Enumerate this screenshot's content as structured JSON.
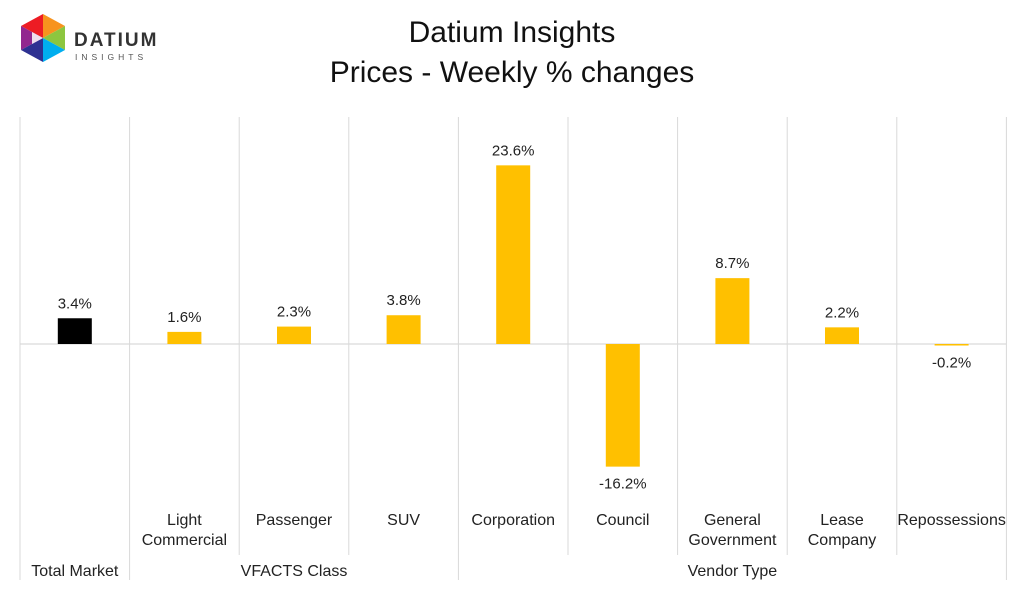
{
  "logo": {
    "brand": "DATIUM",
    "sub": "INSIGHTS"
  },
  "colors": {
    "total": "#000000",
    "bar": "#FFC000",
    "grid": "#D9D9D9",
    "text": "#222222"
  },
  "chart_data": {
    "type": "bar",
    "title": "Datium Insights",
    "subtitle": "Prices - Weekly % changes",
    "categories": [
      [
        "Total Market"
      ],
      [
        "Light",
        "Commercial"
      ],
      [
        "Passenger"
      ],
      [
        "SUV"
      ],
      [
        "Corporation"
      ],
      [
        "Council"
      ],
      [
        "General",
        "Government"
      ],
      [
        "Lease",
        "Company"
      ],
      [
        "Repossessions"
      ]
    ],
    "values": [
      3.4,
      1.6,
      2.3,
      3.8,
      23.6,
      -16.2,
      8.7,
      2.2,
      -0.2
    ],
    "value_labels": [
      "3.4%",
      "1.6%",
      "2.3%",
      "3.8%",
      "23.6%",
      "-16.2%",
      "8.7%",
      "2.2%",
      "-0.2%"
    ],
    "groups": [
      {
        "label": "Total Market",
        "start": 0,
        "end": 0
      },
      {
        "label": "VFACTS Class",
        "start": 1,
        "end": 3
      },
      {
        "label": "Vendor Type",
        "start": 4,
        "end": 8
      }
    ],
    "highlight_index": 0,
    "ylim": [
      -20,
      26
    ],
    "grid": true
  }
}
